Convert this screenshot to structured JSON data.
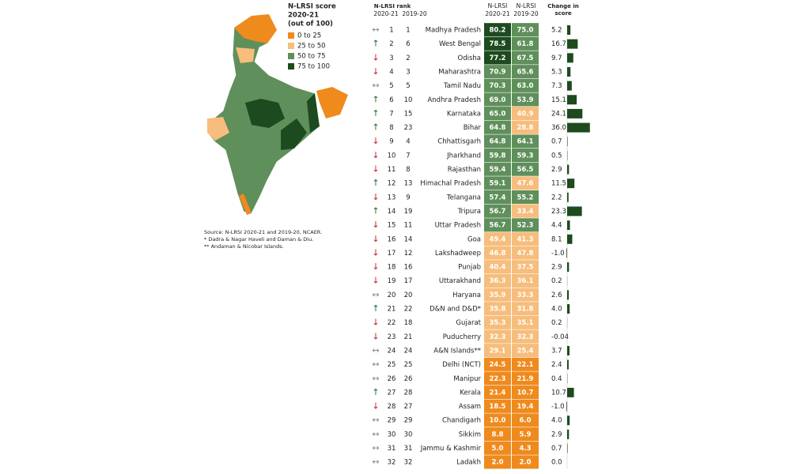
{
  "legend": {
    "title": [
      "N-LRSI score",
      "2020-21",
      "(out of 100)"
    ],
    "items": [
      {
        "label": "0 to 25",
        "color": "#ef8a1d",
        "range": [
          0,
          25
        ]
      },
      {
        "label": "25 to 50",
        "color": "#f6bd7c",
        "range": [
          25,
          50
        ]
      },
      {
        "label": "50 to 75",
        "color": "#5f8f5b",
        "range": [
          50,
          75
        ]
      },
      {
        "label": "75 to 100",
        "color": "#1d4a1e",
        "range": [
          75,
          100
        ]
      }
    ]
  },
  "notes": [
    "Source: N-LRSI 2020-21 and 2019-20, NCAER.",
    "* Dadra & Nagar Haveli and Daman & Diu.",
    "** Andaman & Nicobar Islands."
  ],
  "header": {
    "rank": "N-LRSI rank",
    "rank_2020": "2020-21",
    "rank_2019": "2019-20",
    "score_2020": [
      "N-LRSI",
      "2020-21"
    ],
    "score_2019": [
      "N-LRSI",
      "2019-20"
    ],
    "change": [
      "Change in",
      "score"
    ]
  },
  "table": {
    "bar_color": "#1d4a1e",
    "rows": [
      {
        "trend": "↔",
        "rank_2020": 1,
        "rank_2019": 1,
        "state": "Madhya Pradesh",
        "score_2020": "80.2",
        "score_2019": "75.0",
        "change": "5.2"
      },
      {
        "trend": "↑",
        "rank_2020": 2,
        "rank_2019": 6,
        "state": "West Bengal",
        "score_2020": "78.5",
        "score_2019": "61.8",
        "change": "16.7"
      },
      {
        "trend": "↓",
        "rank_2020": 3,
        "rank_2019": 2,
        "state": "Odisha",
        "score_2020": "77.2",
        "score_2019": "67.5",
        "change": "9.7"
      },
      {
        "trend": "↓",
        "rank_2020": 4,
        "rank_2019": 3,
        "state": "Maharashtra",
        "score_2020": "70.9",
        "score_2019": "65.6",
        "change": "5.3"
      },
      {
        "trend": "↔",
        "rank_2020": 5,
        "rank_2019": 5,
        "state": "Tamil Nadu",
        "score_2020": "70.3",
        "score_2019": "63.0",
        "change": "7.3"
      },
      {
        "trend": "↑",
        "rank_2020": 6,
        "rank_2019": 10,
        "state": "Andhra Pradesh",
        "score_2020": "69.0",
        "score_2019": "53.9",
        "change": "15.1"
      },
      {
        "trend": "↑",
        "rank_2020": 7,
        "rank_2019": 15,
        "state": "Karnataka",
        "score_2020": "65.0",
        "score_2019": "40.9",
        "change": "24.1"
      },
      {
        "trend": "↑",
        "rank_2020": 8,
        "rank_2019": 23,
        "state": "Bihar",
        "score_2020": "64.8",
        "score_2019": "28.8",
        "change": "36.0"
      },
      {
        "trend": "↓",
        "rank_2020": 9,
        "rank_2019": 4,
        "state": "Chhattisgarh",
        "score_2020": "64.8",
        "score_2019": "64.1",
        "change": "0.7"
      },
      {
        "trend": "↓",
        "rank_2020": 10,
        "rank_2019": 7,
        "state": "Jharkhand",
        "score_2020": "59.8",
        "score_2019": "59.3",
        "change": "0.5"
      },
      {
        "trend": "↓",
        "rank_2020": 11,
        "rank_2019": 8,
        "state": "Rajasthan",
        "score_2020": "59.4",
        "score_2019": "56.5",
        "change": "2.9"
      },
      {
        "trend": "↑",
        "rank_2020": 12,
        "rank_2019": 13,
        "state": "Himachal Pradesh",
        "score_2020": "59.1",
        "score_2019": "47.6",
        "change": "11.5"
      },
      {
        "trend": "↓",
        "rank_2020": 13,
        "rank_2019": 9,
        "state": "Telangana",
        "score_2020": "57.4",
        "score_2019": "55.2",
        "change": "2.2"
      },
      {
        "trend": "↑",
        "rank_2020": 14,
        "rank_2019": 19,
        "state": "Tripura",
        "score_2020": "56.7",
        "score_2019": "33.4",
        "change": "23.3"
      },
      {
        "trend": "↓",
        "rank_2020": 15,
        "rank_2019": 11,
        "state": "Uttar Pradesh",
        "score_2020": "56.7",
        "score_2019": "52.3",
        "change": "4.4"
      },
      {
        "trend": "↓",
        "rank_2020": 16,
        "rank_2019": 14,
        "state": "Goa",
        "score_2020": "49.4",
        "score_2019": "41.3",
        "change": "8.1"
      },
      {
        "trend": "↓",
        "rank_2020": 17,
        "rank_2019": 12,
        "state": "Lakshadweep",
        "score_2020": "46.8",
        "score_2019": "47.8",
        "change": "-1.0"
      },
      {
        "trend": "↓",
        "rank_2020": 18,
        "rank_2019": 16,
        "state": "Punjab",
        "score_2020": "40.4",
        "score_2019": "37.5",
        "change": "2.9"
      },
      {
        "trend": "↓",
        "rank_2020": 19,
        "rank_2019": 17,
        "state": "Uttarakhand",
        "score_2020": "36.3",
        "score_2019": "36.1",
        "change": "0.2"
      },
      {
        "trend": "↔",
        "rank_2020": 20,
        "rank_2019": 20,
        "state": "Haryana",
        "score_2020": "35.9",
        "score_2019": "33.3",
        "change": "2.6"
      },
      {
        "trend": "↑",
        "rank_2020": 21,
        "rank_2019": 22,
        "state": "D&N and D&D*",
        "score_2020": "35.8",
        "score_2019": "31.8",
        "change": "4.0"
      },
      {
        "trend": "↓",
        "rank_2020": 22,
        "rank_2019": 18,
        "state": "Gujarat",
        "score_2020": "35.3",
        "score_2019": "35.1",
        "change": "0.2"
      },
      {
        "trend": "↓",
        "rank_2020": 23,
        "rank_2019": 21,
        "state": "Puducherry",
        "score_2020": "32.3",
        "score_2019": "32.3",
        "change": "-0.04"
      },
      {
        "trend": "↔",
        "rank_2020": 24,
        "rank_2019": 24,
        "state": "A&N Islands**",
        "score_2020": "29.1",
        "score_2019": "25.4",
        "change": "3.7"
      },
      {
        "trend": "↔",
        "rank_2020": 25,
        "rank_2019": 25,
        "state": "Delhi (NCT)",
        "score_2020": "24.5",
        "score_2019": "22.1",
        "change": "2.4"
      },
      {
        "trend": "↔",
        "rank_2020": 26,
        "rank_2019": 26,
        "state": "Manipur",
        "score_2020": "22.3",
        "score_2019": "21.9",
        "change": "0.4"
      },
      {
        "trend": "↑",
        "rank_2020": 27,
        "rank_2019": 28,
        "state": "Kerala",
        "score_2020": "21.4",
        "score_2019": "10.7",
        "change": "10.7"
      },
      {
        "trend": "↓",
        "rank_2020": 28,
        "rank_2019": 27,
        "state": "Assam",
        "score_2020": "18.5",
        "score_2019": "19.4",
        "change": "-1.0"
      },
      {
        "trend": "↔",
        "rank_2020": 29,
        "rank_2019": 29,
        "state": "Chandigarh",
        "score_2020": "10.0",
        "score_2019": "6.0",
        "change": "4.0"
      },
      {
        "trend": "↔",
        "rank_2020": 30,
        "rank_2019": 30,
        "state": "Sikkim",
        "score_2020": "8.8",
        "score_2019": "5.9",
        "change": "2.9"
      },
      {
        "trend": "↔",
        "rank_2020": 31,
        "rank_2019": 31,
        "state": "Jammu & Kashmir",
        "score_2020": "5.0",
        "score_2019": "4.3",
        "change": "0.7"
      },
      {
        "trend": "↔",
        "rank_2020": 32,
        "rank_2019": 32,
        "state": "Ladakh",
        "score_2020": "2.0",
        "score_2019": "2.0",
        "change": "0.0"
      }
    ]
  }
}
